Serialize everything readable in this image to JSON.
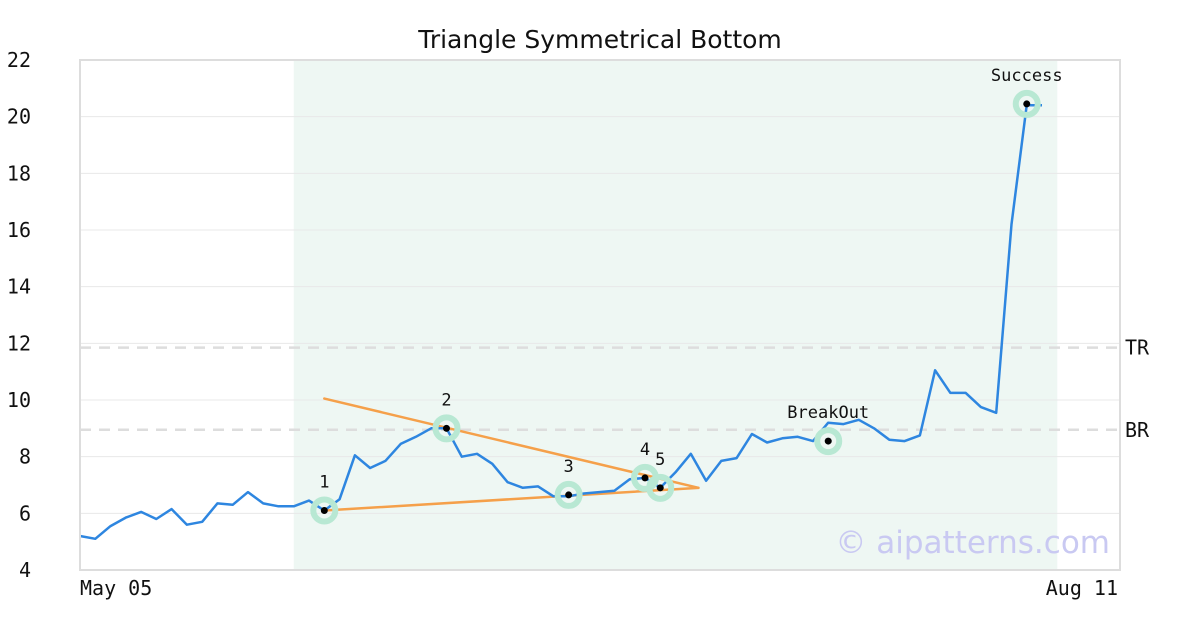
{
  "chart_data": {
    "type": "line",
    "title": "Triangle Symmetrical Bottom",
    "xlabel": "",
    "ylabel": "",
    "ylim": [
      4,
      22
    ],
    "yticks": [
      4,
      6,
      8,
      10,
      12,
      14,
      16,
      18,
      20,
      22
    ],
    "xtick_labels": [
      "May 05",
      "Aug 11"
    ],
    "grid": true,
    "series": [
      {
        "color": "#2e86e0",
        "values": [
          5.2,
          5.1,
          5.55,
          5.85,
          6.05,
          5.8,
          6.15,
          5.6,
          5.7,
          6.35,
          6.3,
          6.75,
          6.35,
          6.25,
          6.25,
          6.45,
          6.1,
          6.5,
          8.05,
          7.6,
          7.85,
          8.45,
          8.7,
          9.0,
          9.0,
          8.0,
          8.1,
          7.75,
          7.1,
          6.9,
          6.95,
          6.6,
          6.6,
          6.7,
          6.75,
          6.8,
          7.2,
          7.25,
          6.9,
          7.45,
          8.1,
          7.15,
          7.85,
          7.95,
          8.8,
          8.5,
          8.65,
          8.7,
          8.55,
          9.2,
          9.15,
          9.3,
          9.0,
          8.6,
          8.55,
          8.75,
          11.05,
          10.25,
          10.25,
          9.75,
          9.55,
          16.2,
          20.4,
          20.4
        ]
      }
    ],
    "pattern_region": {
      "start_index": 14,
      "end_index": 64,
      "color": "#eef7f3"
    },
    "trend_lines": [
      {
        "color": "#f5a04a",
        "from": {
          "index": 16,
          "value": 10.05
        },
        "to": {
          "index": 40.5,
          "value": 6.9
        }
      },
      {
        "color": "#f5a04a",
        "from": {
          "index": 16,
          "value": 6.1
        },
        "to": {
          "index": 40.5,
          "value": 6.9
        }
      }
    ],
    "annotations": [
      {
        "label": "1",
        "index": 16,
        "value": 6.1
      },
      {
        "label": "2",
        "index": 24,
        "value": 9.0
      },
      {
        "label": "3",
        "index": 32,
        "value": 6.65
      },
      {
        "label": "4",
        "index": 37,
        "value": 7.25
      },
      {
        "label": "5",
        "index": 38,
        "value": 6.9
      },
      {
        "label": "BreakOut",
        "index": 49,
        "value": 8.55
      },
      {
        "label": "Success",
        "index": 62,
        "value": 20.45
      }
    ],
    "hlines": [
      {
        "label": "TR",
        "value": 11.85
      },
      {
        "label": "BR",
        "value": 8.95
      }
    ],
    "watermark": "© aipatterns.com"
  }
}
